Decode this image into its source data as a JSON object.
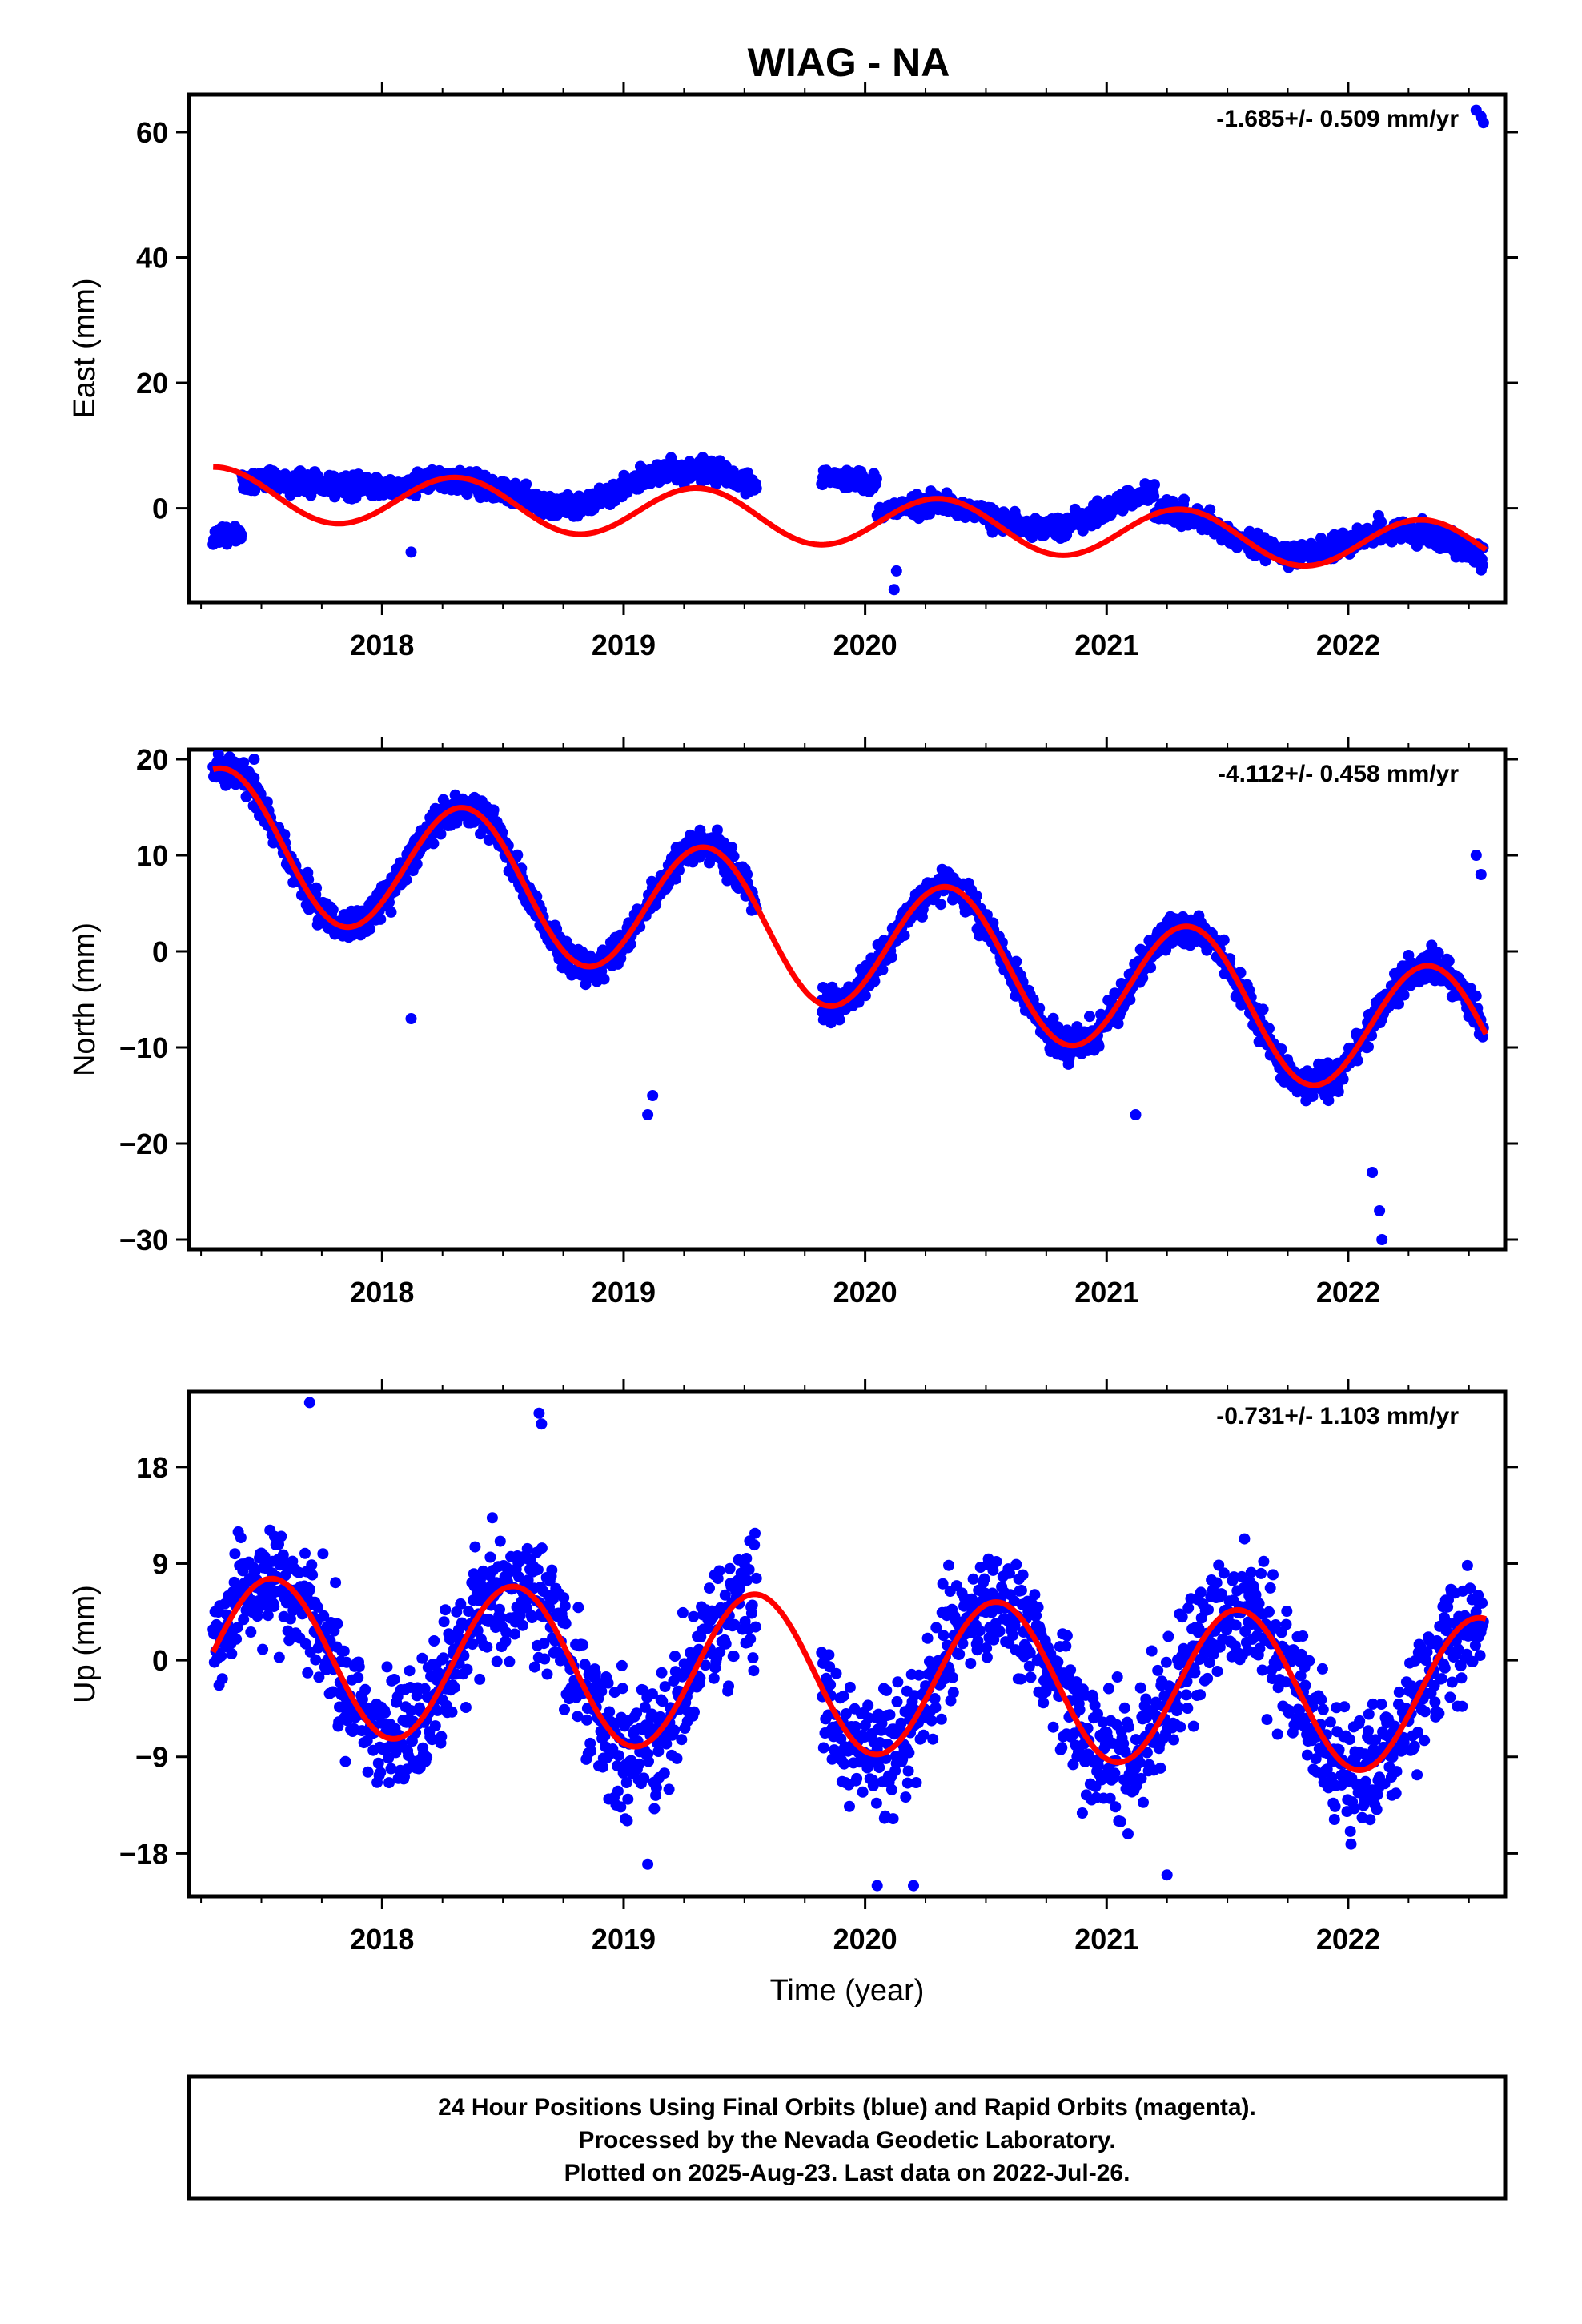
{
  "chart_data": [
    {
      "type": "scatter",
      "title": "WIAG - NA",
      "ylabel": "East (mm)",
      "xlabel": "",
      "xlim": [
        2017.2,
        2022.65
      ],
      "ylim": [
        -15,
        66
      ],
      "yticks": [
        0,
        20,
        40,
        60
      ],
      "xticks": [
        2018,
        2019,
        2020,
        2021,
        2022
      ],
      "rate_text": "-1.685+/- 0.509 mm/yr",
      "colors": {
        "points": "#0000ff",
        "model": "#ff0000"
      },
      "segments": [
        {
          "x0": 2017.3,
          "x1": 2017.42,
          "base": -4.5,
          "slope": 0,
          "amp": 0,
          "noise": 1.0
        },
        {
          "x0": 2017.42,
          "x1": 2018.1,
          "base": 4.5,
          "slope": -2,
          "amp": 0,
          "noise": 1.2
        },
        {
          "x0": 2018.1,
          "x1": 2019.55,
          "base": 2.0,
          "slope": 1.5,
          "amp": 2.5,
          "noise": 1.3
        },
        {
          "x0": 2019.82,
          "x1": 2020.05,
          "base": 5.0,
          "slope": -4,
          "amp": 0,
          "noise": 1.0
        },
        {
          "x0": 2020.05,
          "x1": 2021.2,
          "base": -2.0,
          "slope": 2,
          "amp": 2.5,
          "noise": 1.2
        },
        {
          "x0": 2021.2,
          "x1": 2022.56,
          "base": -3.0,
          "slope": -3,
          "amp": 2.5,
          "noise": 1.3
        }
      ],
      "outlier_points": [
        {
          "x": 2020.12,
          "y": -13
        },
        {
          "x": 2020.13,
          "y": -10
        },
        {
          "x": 2018.12,
          "y": -7
        },
        {
          "x": 2022.55,
          "y": 62.5
        },
        {
          "x": 2022.53,
          "y": 63.5
        },
        {
          "x": 2022.56,
          "y": 61.5
        }
      ],
      "model": {
        "t0": 2017.3,
        "y0": 2.5,
        "rate": -1.685,
        "a_sin": 3.8,
        "a_cos": -1.5,
        "phase": 0.0
      }
    },
    {
      "type": "scatter",
      "ylabel": "North (mm)",
      "xlabel": "",
      "xlim": [
        2017.2,
        2022.65
      ],
      "ylim": [
        -31,
        21
      ],
      "yticks": [
        -30,
        -20,
        -10,
        0,
        10,
        20
      ],
      "xticks": [
        2018,
        2019,
        2020,
        2021,
        2022
      ],
      "rate_text": "-4.112+/- 0.458 mm/yr",
      "colors": {
        "points": "#0000ff",
        "model": "#ff0000"
      },
      "segments": [
        {
          "x0": 2017.3,
          "x1": 2019.55,
          "base": 0,
          "slope": 0,
          "amp": 0,
          "noise": 1.2,
          "follow_model": true
        },
        {
          "x0": 2019.82,
          "x1": 2022.56,
          "base": 0,
          "slope": 0,
          "amp": 0,
          "noise": 1.2,
          "follow_model": true
        }
      ],
      "outlier_points": [
        {
          "x": 2019.1,
          "y": -17
        },
        {
          "x": 2019.12,
          "y": -15
        },
        {
          "x": 2022.14,
          "y": -30
        },
        {
          "x": 2022.13,
          "y": -27
        },
        {
          "x": 2022.1,
          "y": -23
        },
        {
          "x": 2018.12,
          "y": -7
        },
        {
          "x": 2021.12,
          "y": -17
        },
        {
          "x": 2022.53,
          "y": 10
        },
        {
          "x": 2022.55,
          "y": 8
        },
        {
          "x": 2017.47,
          "y": 20
        }
      ],
      "model": {
        "t0": 2017.3,
        "y0": 12.0,
        "rate": -4.112,
        "a_sin": 6.0,
        "a_cos": -4.0,
        "phase": 0.0
      }
    },
    {
      "type": "scatter",
      "ylabel": "Up (mm)",
      "xlabel": "Time (year)",
      "xlim": [
        2017.2,
        2022.65
      ],
      "ylim": [
        -22,
        25
      ],
      "yticks": [
        -18,
        -9,
        0,
        9,
        18
      ],
      "xticks": [
        2018,
        2019,
        2020,
        2021,
        2022
      ],
      "rate_text": "-0.731+/- 1.103 mm/yr",
      "colors": {
        "points": "#0000ff",
        "model": "#ff0000"
      },
      "segments": [
        {
          "x0": 2017.3,
          "x1": 2019.55,
          "base": 0,
          "slope": 0,
          "amp": 0,
          "noise": 4.0,
          "follow_model": true
        },
        {
          "x0": 2019.82,
          "x1": 2022.56,
          "base": 0,
          "slope": 0,
          "amp": 0,
          "noise": 4.0,
          "follow_model": true
        }
      ],
      "outlier_points": [
        {
          "x": 2017.7,
          "y": 24
        },
        {
          "x": 2018.65,
          "y": 23
        },
        {
          "x": 2018.66,
          "y": 22
        },
        {
          "x": 2020.05,
          "y": -21
        },
        {
          "x": 2020.2,
          "y": -21
        },
        {
          "x": 2021.25,
          "y": -20
        },
        {
          "x": 2019.1,
          "y": -19
        }
      ],
      "model": {
        "t0": 2017.3,
        "y0": 0.5,
        "rate": -0.731,
        "a_sin": -2.0,
        "a_cos": -7.0,
        "phase": 0.0
      }
    }
  ],
  "footer": {
    "line1": "24 Hour Positions Using Final Orbits (blue) and Rapid Orbits (magenta).",
    "line2": "Processed by the Nevada Geodetic Laboratory.",
    "line3": "Plotted on 2025-Aug-23. Last data on 2022-Jul-26."
  }
}
